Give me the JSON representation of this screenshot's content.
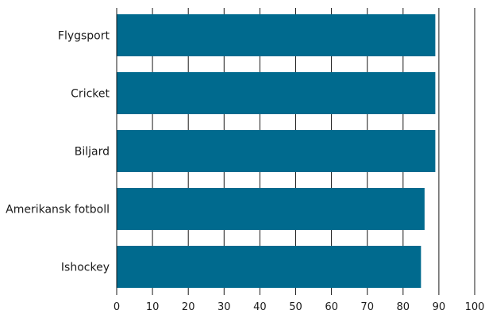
{
  "chart_data": {
    "type": "bar",
    "orientation": "horizontal",
    "categories": [
      "Flygsport",
      "Cricket",
      "Biljard",
      "Amerikansk fotboll",
      "Ishockey"
    ],
    "values": [
      89,
      89,
      89,
      86,
      85
    ],
    "title": "",
    "xlabel": "",
    "ylabel": "",
    "xlim": [
      0,
      100
    ],
    "xticks": [
      "0",
      "10",
      "20",
      "30",
      "40",
      "50",
      "60",
      "70",
      "80",
      "90",
      "100"
    ],
    "grid": "vertical",
    "legend": "none",
    "bar_color": "#006a8e"
  }
}
